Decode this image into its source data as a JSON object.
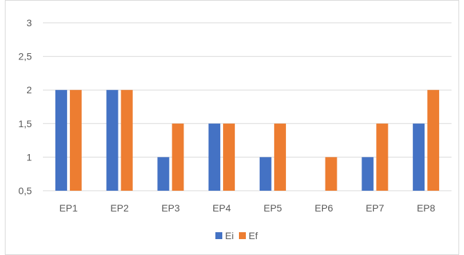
{
  "chart_data": {
    "type": "bar",
    "categories": [
      "EP1",
      "EP2",
      "EP3",
      "EP4",
      "EP5",
      "EP6",
      "EP7",
      "EP8"
    ],
    "series": [
      {
        "name": "Ei",
        "color": "#4472C4",
        "values": [
          2,
          2,
          1,
          1.5,
          1,
          0.5,
          1,
          1.5
        ]
      },
      {
        "name": "Ef",
        "color": "#ED7D31",
        "values": [
          2,
          2,
          1.5,
          1.5,
          1.5,
          1,
          1.5,
          2
        ]
      }
    ],
    "yticks": [
      "0,5",
      "1",
      "1,5",
      "2",
      "2,5",
      "3"
    ],
    "ylim": [
      0.5,
      3
    ],
    "grid": true,
    "legend_position": "bottom"
  }
}
